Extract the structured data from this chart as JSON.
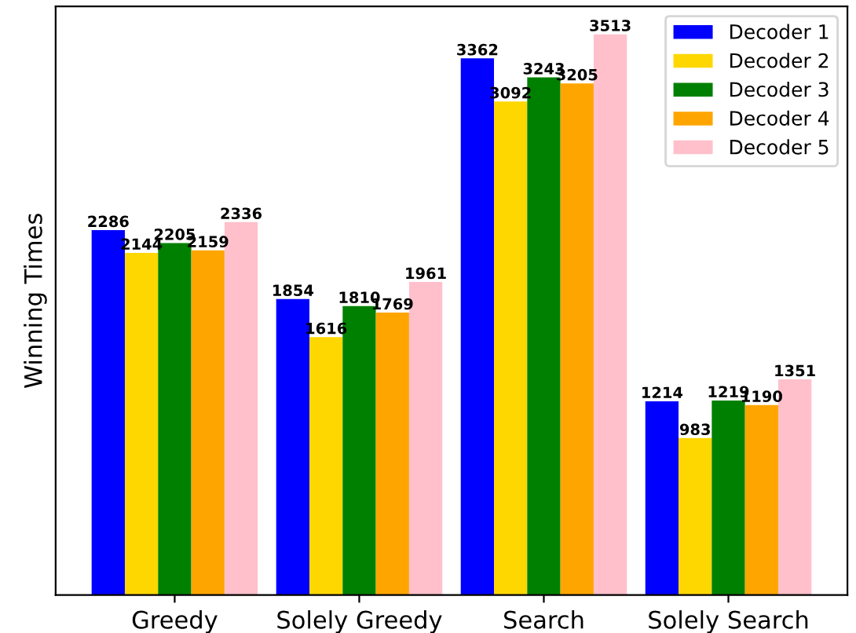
{
  "chart_data": {
    "type": "bar",
    "ylabel": "Winning Times",
    "categories": [
      "Greedy",
      "Solely Greedy",
      "Search",
      "Solely Search"
    ],
    "series": [
      {
        "name": "Decoder 1",
        "color": "#0000ff",
        "values": [
          2286,
          1854,
          3362,
          1214
        ]
      },
      {
        "name": "Decoder 2",
        "color": "#ffd700",
        "values": [
          2144,
          1616,
          3092,
          983
        ]
      },
      {
        "name": "Decoder 3",
        "color": "#008000",
        "values": [
          2205,
          1810,
          3243,
          1219
        ]
      },
      {
        "name": "Decoder 4",
        "color": "#ffa500",
        "values": [
          2159,
          1769,
          3205,
          1190
        ]
      },
      {
        "name": "Decoder 5",
        "color": "#ffc0cb",
        "values": [
          2336,
          1961,
          3513,
          1351
        ]
      }
    ],
    "ylim": [
      0,
      3688
    ],
    "tick_labels": "x",
    "data_labels": true,
    "legend": "top right",
    "grid": false
  }
}
